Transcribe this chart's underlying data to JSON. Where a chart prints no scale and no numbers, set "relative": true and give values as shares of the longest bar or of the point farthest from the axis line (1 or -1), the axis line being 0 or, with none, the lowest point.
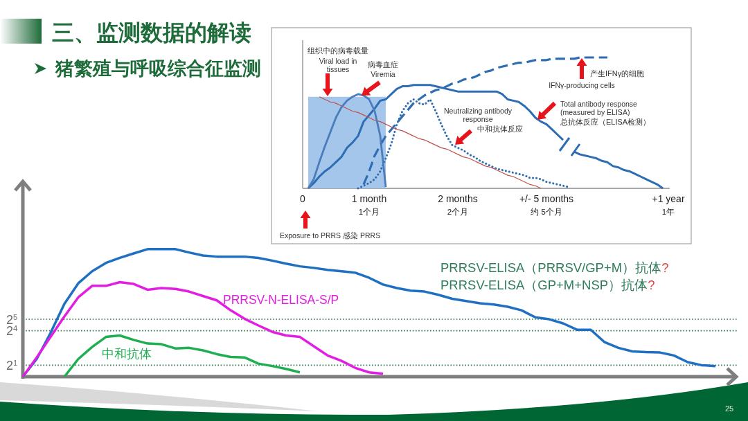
{
  "chart_data": [
    {
      "type": "line",
      "title": "三、监测数据的解读",
      "subtitle": "猪繁殖与呼吸综合征监测",
      "relative": true,
      "tick_labels": "x",
      "categories": [
        "0",
        null,
        null,
        null,
        null,
        null,
        null,
        null,
        null,
        null,
        null,
        null,
        "1 month\n1个月",
        null,
        null,
        null,
        null,
        null,
        null,
        null,
        null,
        null,
        null,
        null,
        null,
        null,
        null,
        null,
        "2 months\n2个月",
        null,
        null,
        null,
        null,
        null,
        null,
        null,
        null,
        null,
        null,
        null,
        null,
        null,
        null,
        null,
        "+/- 5 months\n约 5个月",
        null,
        null,
        null,
        null,
        null,
        null,
        null,
        null,
        null,
        null,
        null,
        null,
        null,
        null,
        null,
        null,
        null,
        null,
        null,
        null,
        null,
        "+1 year\n1年"
      ],
      "series": [
        {
          "type": "area",
          "color": "#a4c6ea",
          "values": [
            null,
            0.7,
            0.7,
            0.7,
            0.7,
            0.7,
            0.7,
            0.7,
            0.7,
            0.7,
            0.7,
            0.7,
            0.7,
            0.7,
            0.7,
            0.7,
            null,
            null,
            null,
            null,
            null,
            null,
            null,
            null,
            null,
            null,
            null,
            null,
            null,
            null,
            null,
            null,
            null,
            null,
            null,
            null,
            null,
            null,
            null,
            null,
            null,
            null,
            null,
            null,
            null,
            null,
            null,
            null,
            null,
            null,
            null,
            null,
            null,
            null,
            null,
            null,
            null,
            null,
            null,
            null,
            null,
            null,
            null,
            null,
            null,
            null,
            null
          ]
        },
        {
          "color": "#4a7cbc",
          "values": [
            null,
            0,
            0.07,
            0.2,
            0.32,
            0.43,
            0.54,
            0.62,
            0.67,
            0.7,
            0.72,
            0.71,
            0.68,
            0.59,
            0.4,
            0.01,
            null,
            null,
            null,
            null,
            null,
            null,
            null,
            null,
            null,
            null,
            null,
            null,
            null,
            null,
            null,
            null,
            null,
            null,
            null,
            null,
            null,
            null,
            null,
            null,
            null,
            null,
            null,
            null,
            null,
            null,
            null,
            null,
            null,
            null,
            null,
            null,
            null,
            null,
            null,
            null,
            null,
            null,
            null,
            null,
            null,
            null,
            null,
            null,
            null,
            null,
            null
          ]
        },
        {
          "color": "#2e6db4",
          "values": [
            null,
            0,
            0.04,
            0.09,
            0.13,
            0.16,
            0.2,
            0.24,
            0.31,
            0.35,
            0.4,
            0.51,
            0.56,
            0.61,
            0.67,
            0.68,
            0.72,
            0.76,
            0.78,
            0.78,
            0.79,
            0.79,
            0.79,
            0.79,
            0.78,
            0.77,
            0.76,
            0.75,
            0.74,
            0.74,
            0.74,
            0.74,
            0.74,
            0.74,
            0.74,
            0.74,
            0.72,
            0.68,
            0.67,
            0.66,
            0.63,
            0.59,
            0.54,
            0.51,
            0.49,
            0.45,
            0.41,
            0.37,
            null,
            0.28,
            0.26,
            0.25,
            0.24,
            0.23,
            0.21,
            0.2,
            0.17,
            0.16,
            0.14,
            0.13,
            0.11,
            0.09,
            0.07,
            0.05,
            0.03,
            0,
            null
          ]
        },
        {
          "color": "#2e6db4",
          "line_style": "dashed",
          "values": [
            null,
            null,
            null,
            null,
            null,
            null,
            null,
            null,
            null,
            null,
            null,
            0.03,
            0.13,
            0.25,
            0.33,
            0.4,
            0.45,
            0.5,
            0.55,
            0.6,
            0.65,
            0.68,
            0.71,
            0.73,
            0.75,
            0.76,
            0.78,
            0.8,
            0.81,
            0.83,
            0.84,
            0.85,
            0.87,
            0.89,
            0.9,
            0.92,
            0.93,
            0.94,
            0.95,
            0.96,
            0.96,
            0.97,
            0.98,
            0.98,
            0.98,
            0.99,
            0.99,
            0.99,
            0.99,
            0.99,
            1,
            1,
            1,
            1,
            1,
            1,
            null,
            null,
            null,
            null,
            null,
            null,
            null,
            null,
            null,
            null,
            null
          ]
        },
        {
          "color": "#2e6db4",
          "line_style": "dotted",
          "values": [
            null,
            null,
            null,
            null,
            null,
            null,
            null,
            null,
            null,
            null,
            0,
            0.02,
            0.04,
            0.07,
            0.13,
            0.23,
            0.34,
            0.49,
            0.59,
            0.65,
            0.68,
            0.65,
            0.64,
            0.68,
            0.59,
            0.49,
            0.4,
            0.33,
            0.31,
            0.29,
            0.26,
            0.24,
            0.21,
            0.19,
            0.17,
            0.15,
            0.14,
            0.13,
            0.12,
            0.11,
            0.1,
            0.08,
            0.08,
            0.07,
            0.05,
            0.04,
            0.03,
            0.02,
            0.01,
            null,
            null,
            null,
            null,
            null,
            null,
            null,
            null,
            null,
            null,
            null,
            null,
            null,
            null,
            null,
            null,
            null,
            null
          ]
        },
        {
          "color": "#c0504d",
          "values": [
            null,
            null,
            null,
            0.7,
            0.68,
            0.66,
            0.65,
            0.63,
            0.61,
            0.59,
            0.58,
            0.56,
            0.54,
            0.52,
            0.51,
            0.49,
            0.47,
            0.45,
            0.44,
            0.42,
            0.4,
            0.38,
            0.37,
            0.35,
            0.33,
            0.31,
            0.3,
            0.28,
            0.26,
            0.24,
            0.23,
            0.21,
            0.19,
            0.17,
            0.16,
            0.14,
            0.12,
            0.1,
            0.09,
            0.07,
            0.05,
            0.03,
            0.02,
            0,
            null,
            null,
            null,
            null,
            null,
            null,
            null,
            null,
            null,
            null,
            null,
            null,
            null,
            null,
            null,
            null,
            null,
            null,
            null,
            null,
            null,
            null,
            null
          ]
        }
      ],
      "annotations": [
        "组织中的病毒载量\nViral load in\ntissues",
        "病毒血症\nViremia",
        "Neutralizing antibody\nresponse",
        "中和抗体反应",
        "产生IFNγ的细胞",
        "IFNγ-producing cells",
        "Total antibody response\n(measured by ELISA)",
        "总抗体反应（ELISA检测）",
        "Exposure to PRRS 感染 PRRS"
      ]
    },
    {
      "type": "line",
      "log": "y",
      "ylim": [
        1,
        131072
      ],
      "yticks": [
        {
          "value": 2,
          "label": "2$^{1}$"
        },
        {
          "value": 16,
          "label": "2$^{4}$"
        },
        {
          "value": 32,
          "label": "2$^{5}$"
        }
      ],
      "grid": "y",
      "tick_labels": "y",
      "categories": [
        null,
        null,
        null,
        null,
        null,
        null,
        null,
        null,
        null,
        null,
        null,
        null,
        null,
        null,
        null,
        null,
        null,
        null,
        null,
        null,
        null,
        null,
        null,
        null,
        null,
        null,
        null,
        null,
        null,
        null,
        null,
        null,
        null,
        null,
        null,
        null,
        null,
        null,
        null,
        null,
        null,
        null,
        null,
        null,
        null,
        null,
        null,
        null,
        null,
        null,
        null
      ],
      "series": [
        {
          "color": "#1f6fc2",
          "values": [
            1,
            2.9,
            14,
            81,
            280,
            580,
            960,
            1300,
            1700,
            2200,
            2200,
            2200,
            1800,
            1500,
            1400,
            1400,
            1400,
            1300,
            1100,
            920,
            780,
            710,
            630,
            580,
            530,
            390,
            260,
            210,
            180,
            170,
            140,
            110,
            96,
            84,
            78,
            68,
            55,
            36,
            32,
            25,
            17,
            17,
            8,
            5.7,
            4.6,
            4.4,
            4.3,
            3.6,
            2.4,
            2,
            1.9
          ]
        },
        {
          "name": "PRRSV-N-ELISA-S/P",
          "color": "#e21ee2",
          "values": [
            1,
            3.2,
            11,
            38,
            120,
            240,
            240,
            300,
            270,
            190,
            210,
            200,
            170,
            130,
            100,
            55,
            33,
            22,
            15,
            12,
            11,
            6.3,
            3.6,
            2.6,
            1.7,
            1.3,
            1.2,
            null,
            null,
            null,
            null,
            null,
            null,
            null,
            null,
            null,
            null,
            null,
            null,
            null,
            null,
            null,
            null,
            null,
            null,
            null,
            null,
            null,
            null,
            null,
            null
          ]
        },
        {
          "name": "中和抗体",
          "color": "#1fae52",
          "values": [
            null,
            null,
            null,
            1,
            2.9,
            6,
            11,
            12,
            9.2,
            7.4,
            7.1,
            5.5,
            5.7,
            4.9,
            3.9,
            3.3,
            3.2,
            2.2,
            1.9,
            1.6,
            1.3,
            null,
            null,
            null,
            null,
            null,
            null,
            null,
            null,
            null,
            null,
            null,
            null,
            null,
            null,
            null,
            null,
            null,
            null,
            null,
            null,
            null,
            null,
            null,
            null,
            null,
            null,
            null,
            null,
            null,
            null
          ]
        }
      ],
      "annotations": [
        "PRRSV-ELISA（PRRSV/GP+M）抗体?",
        "PRRSV-ELISA（GP+M+NSP）抗体?",
        "25"
      ]
    }
  ]
}
